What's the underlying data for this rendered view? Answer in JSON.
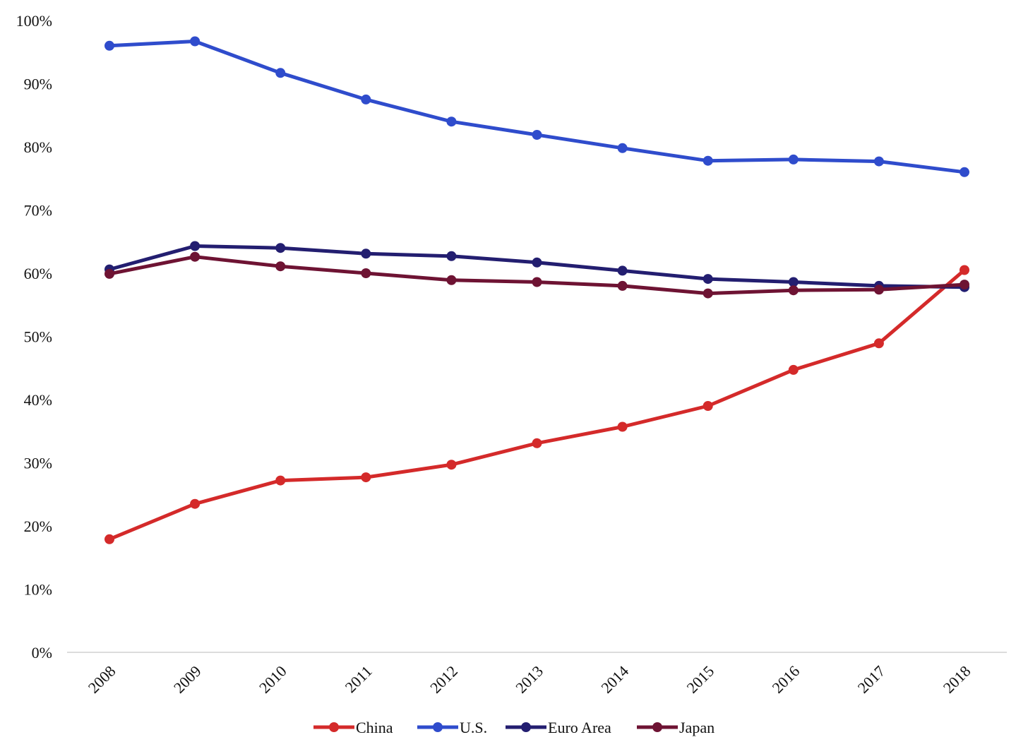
{
  "chart_data": {
    "type": "line",
    "title": "",
    "xlabel": "",
    "ylabel": "",
    "x": [
      "2008",
      "2009",
      "2010",
      "2011",
      "2012",
      "2013",
      "2014",
      "2015",
      "2016",
      "2017",
      "2018"
    ],
    "ylim": [
      0,
      100
    ],
    "yticks": [
      "0%",
      "10%",
      "20%",
      "30%",
      "40%",
      "50%",
      "60%",
      "70%",
      "80%",
      "90%",
      "100%"
    ],
    "grid": false,
    "legend_position": "bottom",
    "series": [
      {
        "name": "China",
        "color": "#d42a2a",
        "values": [
          17.9,
          23.5,
          27.2,
          27.7,
          29.7,
          33.1,
          35.7,
          39.0,
          44.7,
          48.9,
          60.5
        ]
      },
      {
        "name": "U.S.",
        "color": "#2f4ccc",
        "values": [
          96.0,
          96.7,
          91.7,
          87.5,
          84.0,
          81.9,
          79.8,
          77.8,
          78.0,
          77.7,
          76.0
        ]
      },
      {
        "name": "Euro Area",
        "color": "#231e70",
        "values": [
          60.6,
          64.3,
          64.0,
          63.1,
          62.7,
          61.7,
          60.4,
          59.1,
          58.6,
          58.0,
          57.8
        ]
      },
      {
        "name": "Japan",
        "color": "#6e1333",
        "values": [
          59.9,
          62.6,
          61.1,
          60.0,
          58.9,
          58.6,
          58.0,
          56.8,
          57.3,
          57.4,
          58.2
        ]
      }
    ]
  }
}
